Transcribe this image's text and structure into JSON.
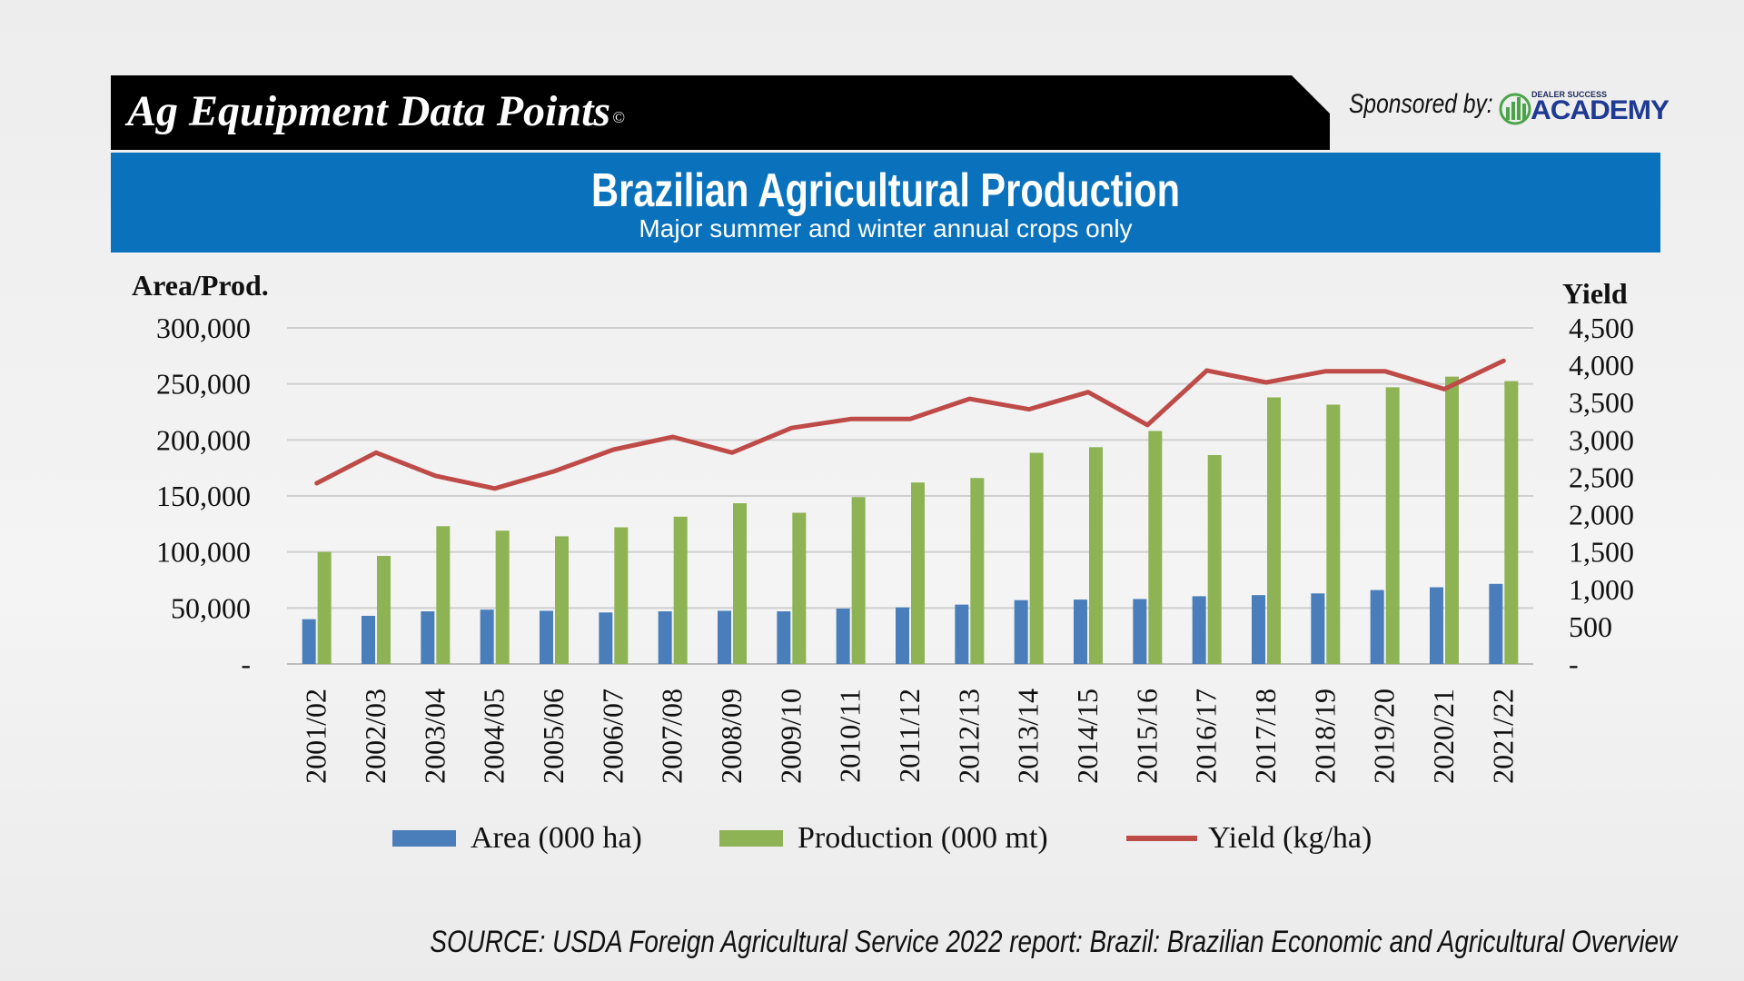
{
  "header": {
    "banner_title": "Ag Equipment Data Points",
    "copyright_mark": "©",
    "sponsored_by": "Sponsored by:",
    "sponsor_small": "DEALER SUCCESS",
    "sponsor_big": "ACADEMY"
  },
  "source": "SOURCE: USDA Foreign Agricultural Service 2022 report: Brazil: Brazilian Economic and Agricultural Overview",
  "colors": {
    "area": "#4a7ebb",
    "production": "#8db354",
    "yield": "#be4b48",
    "title_bar": "#0a72bd",
    "grid": "#d0d0d0"
  },
  "chart_data": {
    "type": "bar",
    "title": "Brazilian Agricultural Production",
    "subtitle": "Major summer and winter annual crops only",
    "ylabel_left": "Area/Prod.",
    "ylabel_right": "Yield",
    "ylim_left": [
      0,
      300000
    ],
    "ylim_right": [
      0,
      4500
    ],
    "yticks_left": [
      "-",
      "50,000",
      "100,000",
      "150,000",
      "200,000",
      "250,000",
      "300,000"
    ],
    "yticks_right": [
      "-",
      "500",
      "1,000",
      "1,500",
      "2,000",
      "2,500",
      "3,000",
      "3,500",
      "4,000",
      "4,500"
    ],
    "grid": true,
    "legend_position": "bottom",
    "categories": [
      "2001/02",
      "2002/03",
      "2003/04",
      "2004/05",
      "2005/06",
      "2006/07",
      "2007/08",
      "2008/09",
      "2009/10",
      "2010/11",
      "2011/12",
      "2012/13",
      "2013/14",
      "2014/15",
      "2015/16",
      "2016/17",
      "2017/18",
      "2018/19",
      "2019/20",
      "2020/21",
      "2021/22"
    ],
    "series": [
      {
        "name": "Area (000 ha)",
        "axis": "left",
        "kind": "bar",
        "values": [
          40000,
          43000,
          47000,
          48500,
          47500,
          46000,
          47000,
          47500,
          47000,
          49500,
          50500,
          53000,
          57000,
          57500,
          58000,
          60500,
          61500,
          63000,
          66000,
          68500,
          71500
        ]
      },
      {
        "name": "Production (000 mt)",
        "axis": "left",
        "kind": "bar",
        "values": [
          100000,
          96500,
          123000,
          119000,
          114000,
          122000,
          131500,
          143500,
          135000,
          149000,
          162000,
          166000,
          188500,
          193500,
          208000,
          186500,
          238000,
          231500,
          247000,
          256500,
          252500
        ]
      },
      {
        "name": "Yield (kg/ha)",
        "axis": "right",
        "kind": "line",
        "values": [
          2420,
          2830,
          2520,
          2350,
          2580,
          2870,
          3040,
          2830,
          3160,
          3280,
          3280,
          3550,
          3410,
          3640,
          3200,
          3930,
          3770,
          3920,
          3920,
          3680,
          4060
        ]
      }
    ]
  }
}
